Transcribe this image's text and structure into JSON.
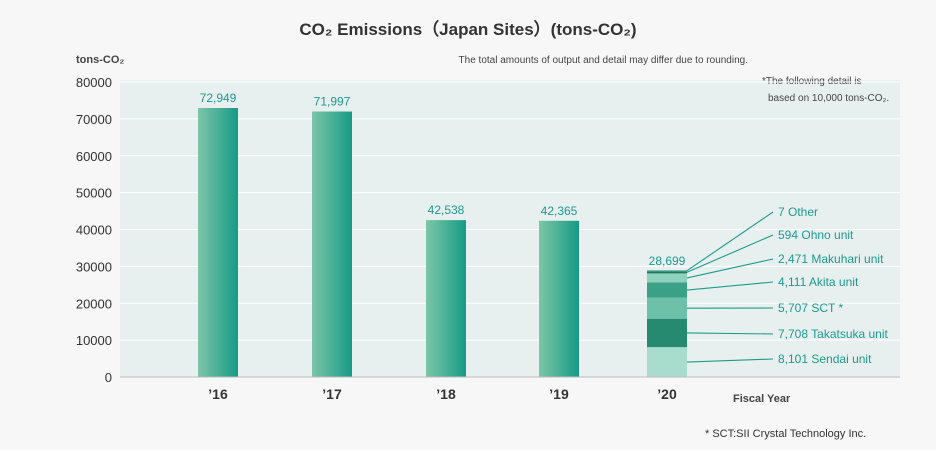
{
  "chart_data": {
    "type": "bar",
    "title": "CO₂ Emissions（Japan Sites）(tons-CO₂)",
    "ylabel": "tons-CO₂",
    "xlabel": "Fiscal Year",
    "note_rounding": "The total amounts of output and detail may differ due to rounding.",
    "note_detail_1": "*The following detail is",
    "note_detail_2": "based on 10,000 tons-CO₂.",
    "footnote": "* SCT:SII Crystal Technology Inc.",
    "ylim": [
      0,
      80000
    ],
    "yticks": [
      "0",
      "10000",
      "20000",
      "30000",
      "40000",
      "50000",
      "60000",
      "70000",
      "80000"
    ],
    "categories": [
      "’16",
      "’17",
      "’18",
      "’19",
      "’20"
    ],
    "values": [
      72949,
      71997,
      42538,
      42365,
      28699
    ],
    "value_labels": [
      "72,949",
      "71,997",
      "42,538",
      "42,365",
      "28,699"
    ],
    "breakdown_2020": [
      {
        "name": "Sendai unit",
        "value": 8101,
        "label": "8,101 Sendai unit",
        "color": "#a8dccc"
      },
      {
        "name": "Takatsuka unit",
        "value": 7708,
        "label": "7,708 Takatsuka unit",
        "color": "#268a71"
      },
      {
        "name": "SCT *",
        "value": 5707,
        "label": "5,707 SCT *",
        "color": "#6cc1a8"
      },
      {
        "name": "Akita unit",
        "value": 4111,
        "label": "4,111 Akita unit",
        "color": "#3ba186"
      },
      {
        "name": "Makuhari unit",
        "value": 2471,
        "label": "2,471 Makuhari unit",
        "color": "#8ed1bd"
      },
      {
        "name": "Ohno unit",
        "value": 594,
        "label": "594 Ohno unit",
        "color": "#1f7a64"
      },
      {
        "name": "Other",
        "value": 7,
        "label": "7 Other",
        "color": "#5bb59d"
      }
    ],
    "colors": {
      "bar_light": "#7cc6a8",
      "bar_dark": "#1a9a86",
      "label": "#1c9a8e",
      "plot_bg": "#e8f0ef"
    },
    "grid": true
  }
}
